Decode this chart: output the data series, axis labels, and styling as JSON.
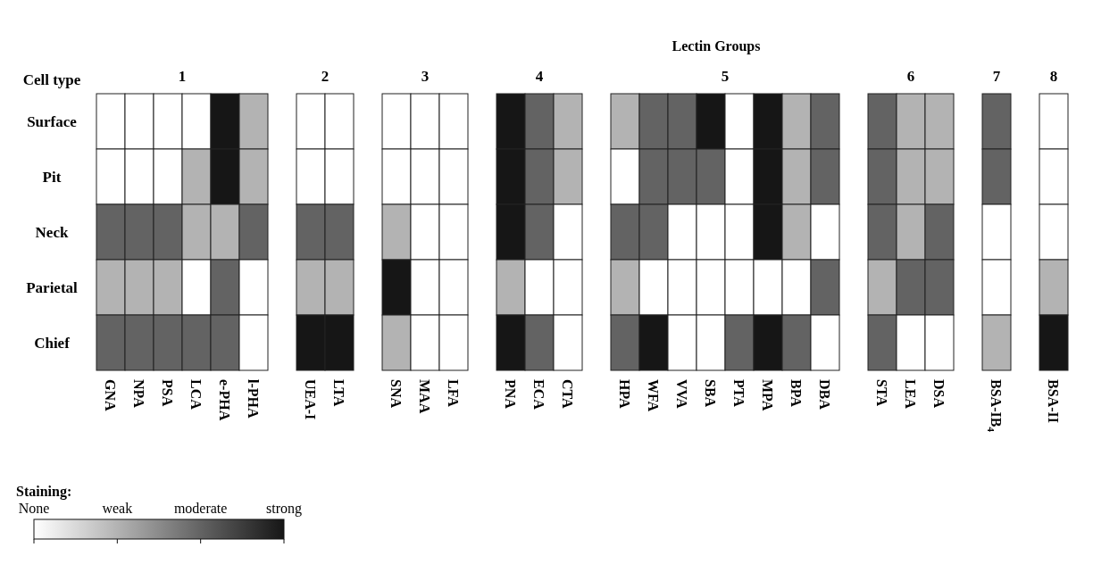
{
  "chart_data": {
    "type": "heatmap",
    "title": "Lectin Groups",
    "ylabel": "Cell type",
    "clabel": "Staining:",
    "categories": [
      "GNA",
      "NPA",
      "PSA",
      "LCA",
      "e-PHA",
      "l-PHA",
      null,
      "UEA-I",
      "LTA",
      null,
      "SNA",
      "MAA",
      "LFA",
      null,
      "PNA",
      "ECA",
      "CTA",
      null,
      "HPA",
      "WFA",
      "VVA",
      "SBA",
      "PTA",
      "MPA",
      "BPA",
      "DBA",
      null,
      "STA",
      "LEA",
      "DSA",
      null,
      "BSA-IB$_{4}$",
      null,
      "BSA-II"
    ],
    "y_categories": [
      "Surface",
      "Pit",
      "Neck",
      "Parietal",
      "Chief"
    ],
    "cells": [
      [
        0,
        0,
        0,
        0,
        3,
        1,
        null,
        0,
        0,
        null,
        0,
        0,
        0,
        null,
        3,
        2,
        1,
        null,
        1,
        2,
        2,
        3,
        0,
        3,
        1,
        2,
        null,
        2,
        1,
        1,
        null,
        2,
        null,
        0
      ],
      [
        0,
        0,
        0,
        1,
        3,
        1,
        null,
        0,
        0,
        null,
        0,
        0,
        0,
        null,
        3,
        2,
        1,
        null,
        0,
        2,
        2,
        2,
        0,
        3,
        1,
        2,
        null,
        2,
        1,
        1,
        null,
        2,
        null,
        0
      ],
      [
        2,
        2,
        2,
        1,
        1,
        2,
        null,
        2,
        2,
        null,
        1,
        0,
        0,
        null,
        3,
        2,
        0,
        null,
        2,
        2,
        0,
        0,
        0,
        3,
        1,
        0,
        null,
        2,
        1,
        2,
        null,
        0,
        null,
        0
      ],
      [
        1,
        1,
        1,
        0,
        2,
        0,
        null,
        1,
        1,
        null,
        3,
        0,
        0,
        null,
        1,
        0,
        0,
        null,
        1,
        0,
        0,
        0,
        0,
        0,
        0,
        2,
        null,
        1,
        2,
        2,
        null,
        0,
        null,
        1
      ],
      [
        2,
        2,
        2,
        2,
        2,
        0,
        null,
        3,
        3,
        null,
        1,
        0,
        0,
        null,
        3,
        2,
        0,
        null,
        2,
        3,
        0,
        0,
        2,
        3,
        2,
        0,
        null,
        2,
        0,
        0,
        null,
        1,
        null,
        3
      ]
    ],
    "clim": [
      0,
      3
    ],
    "cticks": [
      {
        "value": 0,
        "label": "None"
      },
      {
        "value": 1,
        "label": "weak"
      },
      {
        "value": 2,
        "label": "moderate"
      },
      {
        "value": 3,
        "label": "strong"
      }
    ],
    "colors": [
      "#ffffff",
      "#b3b3b3",
      "#636363",
      "#161616"
    ],
    "annotations": [
      "1",
      "2",
      "3",
      "4",
      "5",
      "6",
      "7",
      "8"
    ]
  }
}
